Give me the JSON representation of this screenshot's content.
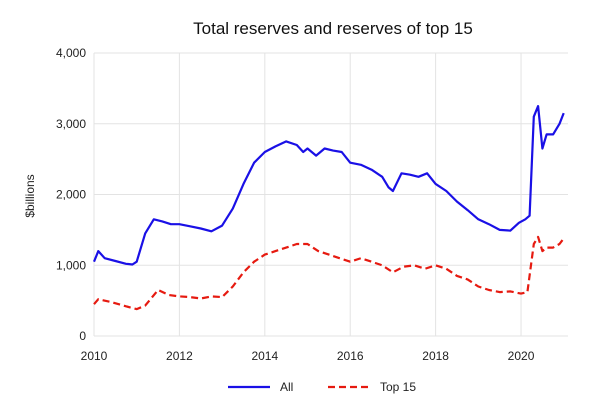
{
  "chart_data": {
    "type": "line",
    "title": "Total reserves and reserves of top 15",
    "xlabel": "",
    "ylabel": "$billions",
    "xlim": [
      2010,
      2021.1
    ],
    "ylim": [
      0,
      4000
    ],
    "x_ticks": [
      2010,
      2012,
      2014,
      2016,
      2018,
      2020
    ],
    "x_tick_labels": [
      "2010",
      "2012",
      "2014",
      "2016",
      "2018",
      "2020"
    ],
    "y_ticks": [
      0,
      1000,
      2000,
      3000,
      4000
    ],
    "y_tick_labels": [
      "0",
      "1,000",
      "2,000",
      "3,000",
      "4,000"
    ],
    "grid": "horizontal and vertical major gridlines",
    "legend_position": "bottom",
    "series": [
      {
        "name": "All",
        "color": "#1a10e6",
        "style": "solid",
        "x": [
          2010.0,
          2010.1,
          2010.25,
          2010.5,
          2010.75,
          2010.9,
          2011.0,
          2011.2,
          2011.4,
          2011.6,
          2011.8,
          2012.0,
          2012.25,
          2012.5,
          2012.75,
          2013.0,
          2013.25,
          2013.5,
          2013.75,
          2014.0,
          2014.25,
          2014.5,
          2014.75,
          2014.9,
          2015.0,
          2015.2,
          2015.4,
          2015.6,
          2015.8,
          2016.0,
          2016.25,
          2016.5,
          2016.75,
          2016.9,
          2017.0,
          2017.2,
          2017.4,
          2017.6,
          2017.8,
          2018.0,
          2018.25,
          2018.5,
          2018.75,
          2019.0,
          2019.25,
          2019.5,
          2019.75,
          2019.95,
          2020.1,
          2020.2,
          2020.3,
          2020.4,
          2020.5,
          2020.6,
          2020.75,
          2020.9,
          2021.0
        ],
        "values": [
          1050,
          1200,
          1100,
          1060,
          1020,
          1010,
          1050,
          1450,
          1650,
          1620,
          1580,
          1580,
          1550,
          1520,
          1480,
          1560,
          1800,
          2150,
          2450,
          2600,
          2680,
          2750,
          2700,
          2600,
          2650,
          2550,
          2650,
          2620,
          2600,
          2450,
          2420,
          2350,
          2250,
          2100,
          2050,
          2300,
          2280,
          2250,
          2300,
          2150,
          2050,
          1900,
          1780,
          1650,
          1580,
          1500,
          1490,
          1600,
          1650,
          1700,
          3100,
          3250,
          2650,
          2850,
          2850,
          3000,
          3150
        ]
      },
      {
        "name": "Top 15",
        "color": "#e61a10",
        "style": "dashed",
        "x": [
          2010.0,
          2010.1,
          2010.4,
          2010.75,
          2011.0,
          2011.2,
          2011.5,
          2011.75,
          2012.0,
          2012.25,
          2012.5,
          2012.75,
          2013.0,
          2013.25,
          2013.5,
          2013.75,
          2014.0,
          2014.25,
          2014.5,
          2014.75,
          2015.0,
          2015.25,
          2015.5,
          2015.75,
          2016.0,
          2016.25,
          2016.5,
          2016.75,
          2017.0,
          2017.25,
          2017.5,
          2017.75,
          2018.0,
          2018.25,
          2018.5,
          2018.75,
          2019.0,
          2019.25,
          2019.5,
          2019.75,
          2020.0,
          2020.15,
          2020.3,
          2020.4,
          2020.5,
          2020.6,
          2020.75,
          2020.9,
          2021.0
        ],
        "values": [
          450,
          520,
          480,
          420,
          380,
          430,
          650,
          580,
          560,
          550,
          530,
          560,
          550,
          700,
          900,
          1050,
          1150,
          1200,
          1250,
          1300,
          1300,
          1200,
          1150,
          1100,
          1050,
          1100,
          1050,
          1000,
          900,
          980,
          1000,
          950,
          1000,
          950,
          850,
          800,
          700,
          650,
          620,
          630,
          600,
          620,
          1300,
          1400,
          1200,
          1250,
          1250,
          1300,
          1380
        ]
      }
    ]
  }
}
